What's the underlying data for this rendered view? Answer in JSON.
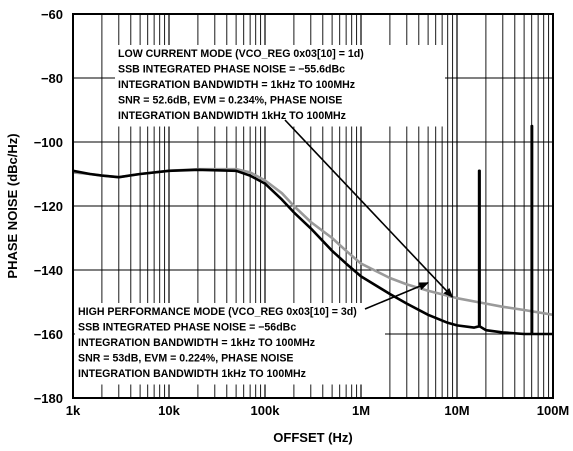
{
  "chart_data": {
    "type": "line",
    "xlabel": "OFFSET (Hz)",
    "ylabel": "PHASE NOISE (dBc/Hz)",
    "xscale": "log",
    "xlim": [
      1000,
      100000000
    ],
    "ylim": [
      -180,
      -60
    ],
    "grid": true,
    "x_ticks": [
      "1k",
      "10k",
      "100k",
      "1M",
      "10M",
      "100M"
    ],
    "y_ticks": [
      "-60",
      "-80",
      "-100",
      "-120",
      "-140",
      "-160",
      "-180"
    ],
    "series": [
      {
        "color": "#000000",
        "points": [
          [
            1000,
            -109
          ],
          [
            1500,
            -110
          ],
          [
            2000,
            -110.5
          ],
          [
            3000,
            -111
          ],
          [
            5000,
            -110
          ],
          [
            10000,
            -109
          ],
          [
            20000,
            -108.7
          ],
          [
            50000,
            -109
          ],
          [
            70000,
            -110.5
          ],
          [
            100000,
            -113
          ],
          [
            150000,
            -118
          ],
          [
            200000,
            -122
          ],
          [
            300000,
            -127
          ],
          [
            500000,
            -134
          ],
          [
            700000,
            -138
          ],
          [
            1000000,
            -142
          ],
          [
            2000000,
            -147.5
          ],
          [
            3000000,
            -150.5
          ],
          [
            5000000,
            -154
          ],
          [
            8000000,
            -156.5
          ],
          [
            10000000,
            -157.3
          ],
          [
            15000000,
            -158
          ],
          [
            17000000,
            -157.6
          ],
          [
            17000000,
            -109
          ],
          [
            17200000,
            -109
          ],
          [
            17200000,
            -157.6
          ],
          [
            20000000,
            -158.8
          ],
          [
            30000000,
            -159.5
          ],
          [
            50000000,
            -160
          ],
          [
            60000000,
            -160
          ],
          [
            60000000,
            -95
          ],
          [
            60500000,
            -95
          ],
          [
            60500000,
            -160
          ],
          [
            100000000,
            -160
          ]
        ]
      },
      {
        "color": "#9a9a9a",
        "points": [
          [
            1000,
            -109.5
          ],
          [
            1500,
            -110
          ],
          [
            2000,
            -110.5
          ],
          [
            3000,
            -111
          ],
          [
            5000,
            -110
          ],
          [
            10000,
            -109
          ],
          [
            20000,
            -108.5
          ],
          [
            50000,
            -108.5
          ],
          [
            70000,
            -109.5
          ],
          [
            100000,
            -112
          ],
          [
            150000,
            -116
          ],
          [
            200000,
            -120
          ],
          [
            300000,
            -125
          ],
          [
            500000,
            -130
          ],
          [
            700000,
            -134
          ],
          [
            1000000,
            -138
          ],
          [
            2000000,
            -142.5
          ],
          [
            3000000,
            -144.5
          ],
          [
            5000000,
            -146.5
          ],
          [
            10000000,
            -148.8
          ],
          [
            20000000,
            -150.5
          ],
          [
            30000000,
            -151.5
          ],
          [
            50000000,
            -152.5
          ],
          [
            100000000,
            -154
          ]
        ]
      }
    ],
    "annotations": [
      {
        "lines": [
          "LOW CURRENT MODE (VCO_REG 0x03[10] = 1d)",
          "SSB INTEGRATED PHASE NOISE = −55.6dBc",
          "INTEGRATION BANDWIDTH = 1kHz TO 100MHz",
          "SNR = 52.6dB, EVM = 0.234%, PHASE NOISE",
          "INTEGRATION BANDWIDTH 1kHz TO 100MHz"
        ],
        "arrow_to": [
          9000000,
          -148.5
        ]
      },
      {
        "lines": [
          "HIGH PERFORMANCE MODE (VCO_REG 0x03[10] = 3d)",
          "SSB INTEGRATED PHASE NOISE = −56dBc",
          "INTEGRATION BANDWIDTH = 1kHz TO 100MHz",
          "SNR = 53dB, EVM = 0.224%, PHASE NOISE",
          "INTEGRATION BANDWIDTH 1kHz TO 100MHz"
        ],
        "arrow_to": [
          5000000,
          -144
        ]
      }
    ]
  }
}
